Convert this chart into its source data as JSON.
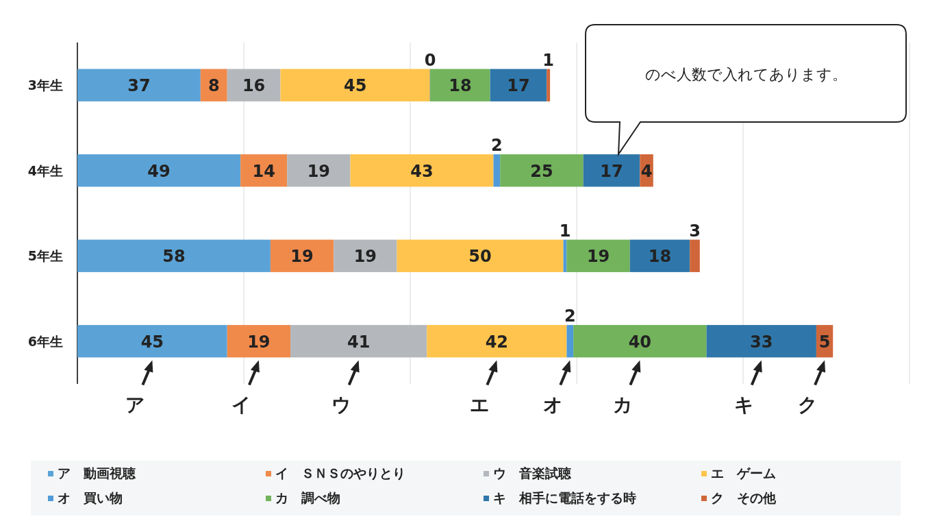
{
  "chart_data": {
    "type": "bar",
    "orientation": "horizontal",
    "stacked": true,
    "data_labels": true,
    "grid": "x",
    "legend": "bottom",
    "tick_labels": "y",
    "categories": [
      "3年生",
      "4年生",
      "5年生",
      "6年生"
    ],
    "xlim": [
      0,
      250
    ],
    "xticks": [
      {
        "value": 0,
        "label": null
      },
      {
        "value": 50,
        "label": null
      },
      {
        "value": 100,
        "label": null
      },
      {
        "value": 150,
        "label": null
      },
      {
        "value": 200,
        "label": null
      },
      {
        "value": 250,
        "label": null
      }
    ],
    "series": [
      {
        "name": "ア　動画視聴",
        "color": "#5ba3d6",
        "values": [
          37,
          49,
          58,
          45
        ]
      },
      {
        "name": "イ　ＳＮＳのやりとり",
        "color": "#f08a4b",
        "values": [
          8,
          14,
          19,
          19
        ]
      },
      {
        "name": "ウ　音楽試聴",
        "color": "#b4b8bc",
        "values": [
          16,
          19,
          19,
          41
        ]
      },
      {
        "name": "エ　ゲーム",
        "color": "#ffc44d",
        "values": [
          45,
          43,
          50,
          42
        ]
      },
      {
        "name": "オ　買い物",
        "color": "#4f9ad8",
        "values": [
          0,
          2,
          1,
          2
        ]
      },
      {
        "name": "カ　調べ物",
        "color": "#72b35c",
        "values": [
          18,
          25,
          19,
          40
        ]
      },
      {
        "name": "キ　相手に電話をする時",
        "color": "#2f77aa",
        "values": [
          17,
          17,
          18,
          33
        ]
      },
      {
        "name": "ク　その他",
        "color": "#d0673a",
        "values": [
          1,
          4,
          3,
          5
        ]
      }
    ],
    "annotations": [
      "のべ人数で入れてあります。",
      "ア",
      "イ",
      "ウ",
      "エ",
      "オ",
      "カ",
      "キ",
      "ク"
    ]
  }
}
